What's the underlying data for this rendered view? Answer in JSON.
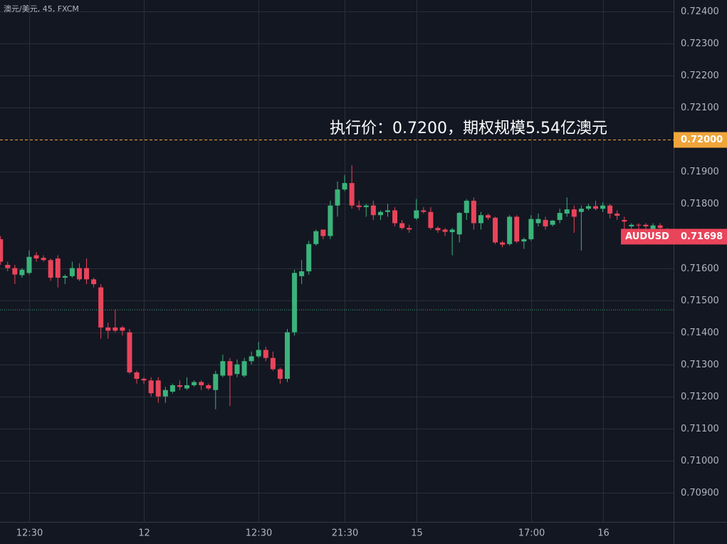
{
  "chart_data": {
    "type": "candlestick",
    "title": "澳元/美元, 45, FXCM",
    "annotation": "执行价：0.7200，期权规模5.54亿澳元",
    "categories": [
      null,
      null,
      null,
      null,
      "12:30",
      null,
      null,
      null,
      null,
      null,
      null,
      null,
      null,
      null,
      null,
      null,
      null,
      null,
      null,
      null,
      "12",
      null,
      null,
      null,
      null,
      null,
      null,
      null,
      null,
      null,
      null,
      null,
      null,
      null,
      null,
      null,
      "12:30",
      null,
      null,
      null,
      null,
      null,
      null,
      null,
      null,
      null,
      null,
      null,
      "21:30",
      null,
      null,
      null,
      null,
      null,
      null,
      null,
      null,
      null,
      "15",
      null,
      null,
      null,
      null,
      null,
      null,
      null,
      null,
      null,
      null,
      null,
      null,
      null,
      null,
      null,
      "17:00",
      null,
      null,
      null,
      null,
      null,
      null,
      null,
      null,
      null,
      "16",
      null,
      null,
      null,
      null,
      null,
      null,
      null,
      null,
      null
    ],
    "open": [
      0.7169,
      0.7161,
      0.716,
      0.71578,
      0.71585,
      0.7164,
      0.71632,
      0.71625,
      0.7163,
      0.7157,
      0.71575,
      0.716,
      0.716,
      0.71565,
      0.7154,
      0.71415,
      0.71415,
      0.71415,
      0.714,
      0.71275,
      0.71255,
      0.7125,
      0.7125,
      0.712,
      0.71215,
      0.71235,
      0.71225,
      0.71235,
      0.71245,
      0.71235,
      0.7122,
      0.71265,
      0.7131,
      0.7127,
      0.71265,
      0.7131,
      0.71325,
      0.71345,
      0.7132,
      0.71285,
      0.71255,
      0.714,
      0.71575,
      0.7159,
      0.71675,
      0.7172,
      0.717,
      0.71795,
      0.71845,
      0.71865,
      0.71795,
      0.7179,
      0.71795,
      0.71765,
      0.71775,
      0.7178,
      0.7174,
      0.71725,
      0.71755,
      0.7178,
      0.71775,
      0.71725,
      0.7172,
      0.71712,
      0.71705,
      0.71772,
      0.7181,
      0.7174,
      0.71765,
      0.71757,
      0.7168,
      0.71675,
      0.7176,
      0.71683,
      0.7169,
      0.7174,
      0.7175,
      0.71735,
      0.7175,
      0.7177,
      0.71783,
      0.71775,
      0.71785,
      0.71793,
      0.71785,
      0.71795,
      0.7177,
      0.7175,
      0.7173,
      0.71735,
      0.71735,
      0.7172,
      0.71733,
      0.7172
    ],
    "high": [
      0.717,
      0.7162,
      0.7161,
      0.716,
      0.71655,
      0.7165,
      0.7164,
      0.7163,
      0.7164,
      0.7158,
      0.7162,
      0.71615,
      0.7163,
      0.7157,
      0.7155,
      0.7143,
      0.7147,
      0.7142,
      0.7141,
      0.7128,
      0.7126,
      0.7126,
      0.7126,
      0.7123,
      0.7124,
      0.7125,
      0.7126,
      0.7125,
      0.7125,
      0.7124,
      0.7128,
      0.7133,
      0.7132,
      0.71315,
      0.7132,
      0.7134,
      0.7137,
      0.71355,
      0.7134,
      0.7129,
      0.7141,
      0.71595,
      0.71625,
      0.71685,
      0.7172,
      0.7172,
      0.7181,
      0.7187,
      0.7189,
      0.7192,
      0.7181,
      0.718,
      0.7181,
      0.7178,
      0.718,
      0.7179,
      0.7175,
      0.71735,
      0.71815,
      0.7179,
      0.7179,
      0.7173,
      0.71725,
      0.71725,
      0.71775,
      0.71815,
      0.7182,
      0.71775,
      0.7177,
      0.7176,
      0.71685,
      0.71765,
      0.71765,
      0.71695,
      0.71765,
      0.7177,
      0.7176,
      0.7175,
      0.71785,
      0.7182,
      0.71795,
      0.71795,
      0.718,
      0.7181,
      0.71805,
      0.718,
      0.7178,
      0.7176,
      0.7174,
      0.7174,
      0.7174,
      0.7174,
      0.7174,
      0.71725
    ],
    "low": [
      0.7161,
      0.7159,
      0.7155,
      0.7157,
      0.7158,
      0.7162,
      0.7162,
      0.7156,
      0.7154,
      0.7155,
      0.7157,
      0.7156,
      0.7155,
      0.7154,
      0.7138,
      0.7138,
      0.714,
      0.7139,
      0.7127,
      0.7124,
      0.7124,
      0.712,
      0.7118,
      0.7118,
      0.7121,
      0.7122,
      0.7122,
      0.7123,
      0.7122,
      0.7122,
      0.7116,
      0.7126,
      0.7117,
      0.7126,
      0.7126,
      0.713,
      0.7132,
      0.7131,
      0.7128,
      0.7124,
      0.71245,
      0.7139,
      0.7155,
      0.7158,
      0.7167,
      0.7169,
      0.7169,
      0.7176,
      0.7184,
      0.71785,
      0.7178,
      0.7176,
      0.7175,
      0.7175,
      0.7176,
      0.7173,
      0.7172,
      0.7171,
      0.7175,
      0.7177,
      0.7172,
      0.7171,
      0.717,
      0.7164,
      0.7168,
      0.7175,
      0.7172,
      0.7172,
      0.7175,
      0.71675,
      0.71665,
      0.7167,
      0.71678,
      0.7166,
      0.71685,
      0.7173,
      0.7172,
      0.7173,
      0.7174,
      0.7176,
      0.7171,
      0.71655,
      0.7178,
      0.7178,
      0.71775,
      0.71755,
      0.7175,
      0.7172,
      0.7172,
      0.7172,
      0.7172,
      0.7171,
      0.7171,
      0.7169
    ],
    "close": [
      0.7162,
      0.716,
      0.7158,
      0.71595,
      0.71635,
      0.7163,
      0.71625,
      0.7157,
      0.7157,
      0.71575,
      0.716,
      0.71565,
      0.71565,
      0.7155,
      0.71415,
      0.71405,
      0.71405,
      0.71405,
      0.71275,
      0.71255,
      0.7125,
      0.7121,
      0.712,
      0.7122,
      0.71235,
      0.7123,
      0.71235,
      0.71245,
      0.71235,
      0.71225,
      0.7127,
      0.7131,
      0.71265,
      0.713,
      0.7131,
      0.71325,
      0.71345,
      0.7132,
      0.71285,
      0.71255,
      0.714,
      0.71585,
      0.7159,
      0.71675,
      0.71715,
      0.717,
      0.71795,
      0.71845,
      0.71865,
      0.71795,
      0.7179,
      0.71795,
      0.71765,
      0.71775,
      0.7178,
      0.7174,
      0.71725,
      0.7172,
      0.7178,
      0.71775,
      0.71725,
      0.71718,
      0.71713,
      0.7172,
      0.71772,
      0.7181,
      0.7174,
      0.71765,
      0.71757,
      0.7168,
      0.71673,
      0.7176,
      0.71683,
      0.7169,
      0.71753,
      0.71753,
      0.7173,
      0.71748,
      0.71772,
      0.71783,
      0.7176,
      0.71785,
      0.71793,
      0.71785,
      0.71795,
      0.7177,
      0.71763,
      0.71745,
      0.71735,
      0.71733,
      0.7173,
      0.71733,
      0.71725,
      0.71698
    ],
    "up_color": "#3bb37b",
    "down_color": "#e9445a",
    "ylim": [
      0.70809,
      0.724355
    ],
    "yticks": [
      {
        "value": 0.709,
        "label": "0.70900"
      },
      {
        "value": 0.71,
        "label": "0.71000"
      },
      {
        "value": 0.711,
        "label": "0.71100"
      },
      {
        "value": 0.712,
        "label": "0.71200"
      },
      {
        "value": 0.713,
        "label": "0.71300"
      },
      {
        "value": 0.714,
        "label": "0.71400"
      },
      {
        "value": 0.715,
        "label": "0.71500"
      },
      {
        "value": 0.716,
        "label": "0.71600"
      },
      {
        "value": 0.718,
        "label": "0.71800"
      },
      {
        "value": 0.719,
        "label": "0.71900"
      },
      {
        "value": 0.721,
        "label": "0.72100"
      },
      {
        "value": 0.722,
        "label": "0.72200"
      },
      {
        "value": 0.723,
        "label": "0.72300"
      },
      {
        "value": 0.724,
        "label": "0.72400"
      }
    ],
    "grid": true,
    "strike_line": {
      "value": 0.72,
      "label": "0.72000",
      "color": "#f0a53a"
    },
    "reference_line": {
      "value": 0.7147,
      "color": "#3bb37b"
    },
    "last_price": {
      "name": "AUDUSD",
      "value": 0.71698,
      "label": "0.71698"
    }
  }
}
